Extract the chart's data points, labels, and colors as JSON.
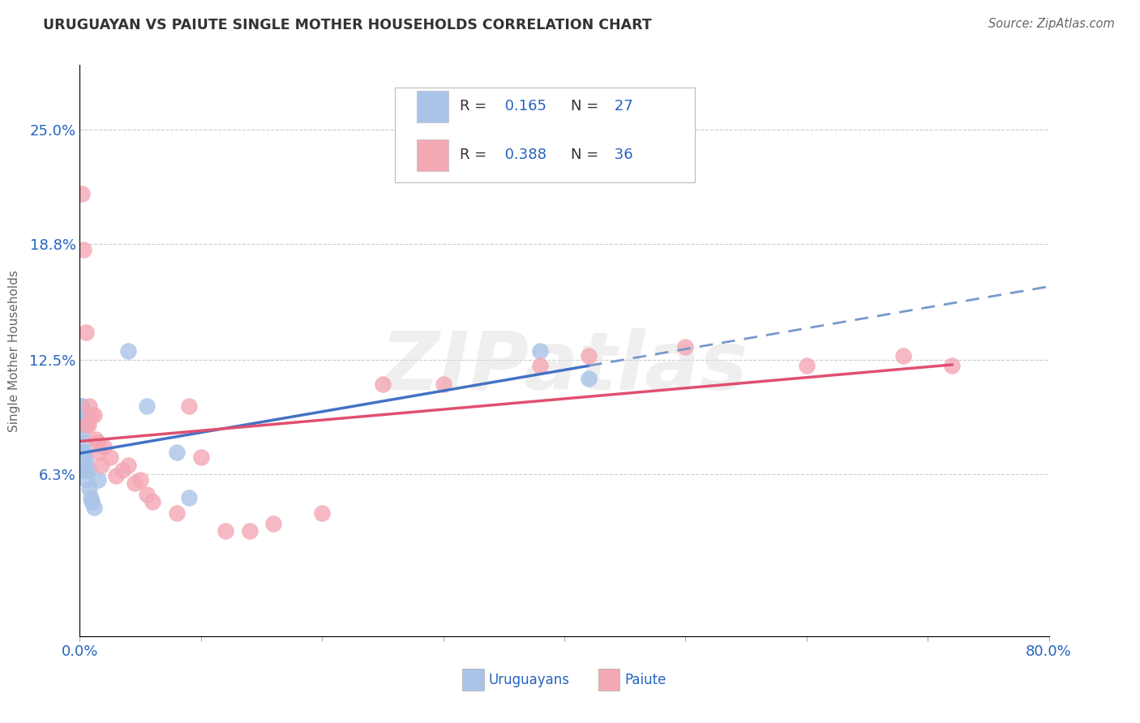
{
  "title": "URUGUAYAN VS PAIUTE SINGLE MOTHER HOUSEHOLDS CORRELATION CHART",
  "source": "Source: ZipAtlas.com",
  "ylabel": "Single Mother Households",
  "xlim": [
    0.0,
    0.8
  ],
  "ylim": [
    -0.025,
    0.285
  ],
  "ytick_positions": [
    0.063,
    0.125,
    0.188,
    0.25
  ],
  "ytick_labels": [
    "6.3%",
    "12.5%",
    "18.8%",
    "25.0%"
  ],
  "grid_color": "#cccccc",
  "background_color": "#ffffff",
  "uruguayan_color": "#aac4e8",
  "paiute_color": "#f4a8b4",
  "uruguayan_R": 0.165,
  "uruguayan_N": 27,
  "paiute_R": 0.388,
  "paiute_N": 36,
  "uruguayan_x": [
    0.001,
    0.001,
    0.001,
    0.002,
    0.002,
    0.002,
    0.002,
    0.003,
    0.003,
    0.003,
    0.004,
    0.004,
    0.005,
    0.005,
    0.006,
    0.007,
    0.008,
    0.009,
    0.01,
    0.012,
    0.015,
    0.04,
    0.055,
    0.08,
    0.09,
    0.38,
    0.42
  ],
  "uruguayan_y": [
    0.09,
    0.095,
    0.1,
    0.085,
    0.09,
    0.095,
    0.1,
    0.065,
    0.075,
    0.08,
    0.07,
    0.075,
    0.065,
    0.07,
    0.06,
    0.065,
    0.055,
    0.05,
    0.048,
    0.045,
    0.06,
    0.13,
    0.1,
    0.075,
    0.05,
    0.13,
    0.115
  ],
  "paiute_x": [
    0.002,
    0.003,
    0.005,
    0.006,
    0.007,
    0.008,
    0.01,
    0.012,
    0.013,
    0.015,
    0.016,
    0.018,
    0.02,
    0.025,
    0.03,
    0.035,
    0.04,
    0.045,
    0.05,
    0.055,
    0.06,
    0.08,
    0.09,
    0.1,
    0.12,
    0.14,
    0.16,
    0.2,
    0.25,
    0.3,
    0.38,
    0.42,
    0.5,
    0.6,
    0.68,
    0.72
  ],
  "paiute_y": [
    0.215,
    0.185,
    0.14,
    0.09,
    0.09,
    0.1,
    0.095,
    0.095,
    0.082,
    0.08,
    0.075,
    0.068,
    0.078,
    0.072,
    0.062,
    0.065,
    0.068,
    0.058,
    0.06,
    0.052,
    0.048,
    0.042,
    0.1,
    0.072,
    0.032,
    0.032,
    0.036,
    0.042,
    0.112,
    0.112,
    0.122,
    0.127,
    0.132,
    0.122,
    0.127,
    0.122
  ],
  "title_color": "#333333",
  "axis_color": "#2563c0",
  "legend_r_color": "#2563c0",
  "legend_n_color": "#2563c0",
  "watermark_text": "ZIPatlas",
  "trendline_blue_solid": "#4472c4",
  "trendline_blue_dashed": "#7799cc",
  "trendline_pink": "#e05070"
}
